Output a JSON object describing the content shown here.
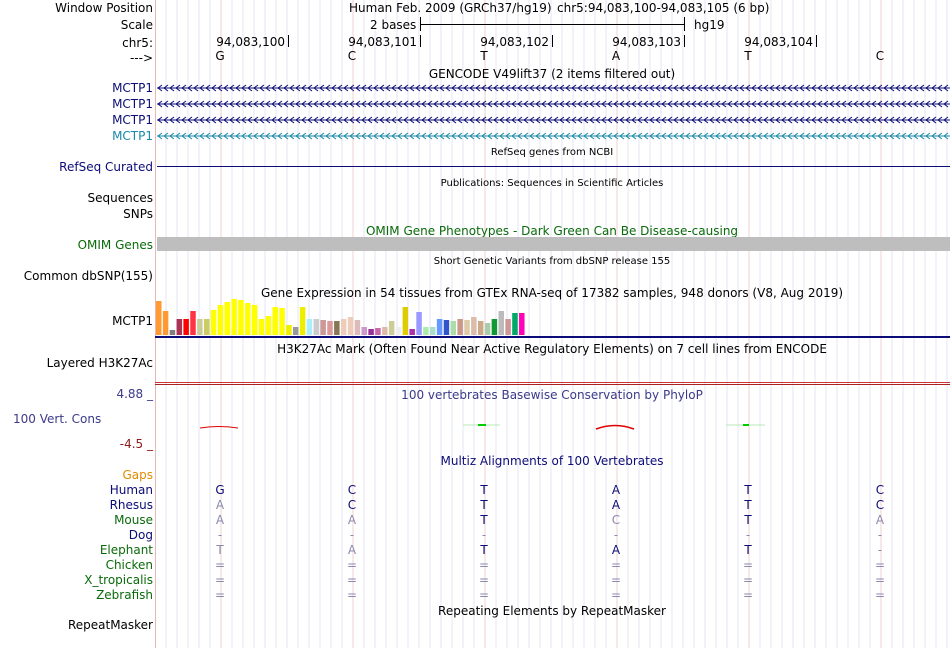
{
  "header": {
    "window_position_label": "Window Position",
    "scale_label": "Scale",
    "chrom_label": "chr5:",
    "strand_label": "--->",
    "assembly": "Human Feb. 2009 (GRCh37/hg19)",
    "position": "chr5:94,083,100-94,083,105 (6 bp)",
    "scale_text": "2 bases",
    "db": "hg19",
    "ticks": [
      "94,083,100",
      "94,083,101",
      "94,083,102",
      "94,083,103",
      "94,083,104"
    ],
    "bases": [
      "G",
      "C",
      "T",
      "A",
      "T",
      "C"
    ]
  },
  "tracks": {
    "gencode": {
      "title": "GENCODE V49lift37 (2 items filtered out)",
      "items": [
        "MCTP1",
        "MCTP1",
        "MCTP1",
        "MCTP1"
      ],
      "colors": [
        "#0c0c78",
        "#0c0c78",
        "#0c0c78",
        "#1a8aa8"
      ]
    },
    "refseq": {
      "label": "RefSeq Curated",
      "title": "RefSeq genes from NCBI",
      "color": "#0c0c78"
    },
    "publications": {
      "title": "Publications: Sequences in Scientific Articles",
      "labels": [
        "Sequences",
        "SNPs"
      ]
    },
    "omim": {
      "label": "OMIM Genes",
      "title": "OMIM Gene Phenotypes - Dark Green Can Be Disease-causing",
      "label_color": "#0a6a0a",
      "bar_color": "#bebebe"
    },
    "dbsnp": {
      "label": "Common dbSNP(155)",
      "title": "Short Genetic Variants from dbSNP release 155"
    },
    "gtex": {
      "label": "MCTP1",
      "title": "Gene Expression in 54 tissues from GTEx RNA-seq of 17382 samples, 948 donors (V8, Aug 2019)",
      "values": [
        34,
        24,
        5,
        16,
        16,
        24,
        16,
        16,
        25,
        30,
        33,
        36,
        35,
        32,
        30,
        16,
        19,
        28,
        27,
        10,
        8,
        28,
        16,
        16,
        15,
        14,
        14,
        16,
        18,
        15,
        8,
        6,
        7,
        8,
        14,
        8,
        28,
        6,
        23,
        8,
        8,
        16,
        15,
        14,
        16,
        15,
        18,
        14,
        12,
        16,
        24,
        16,
        22,
        22
      ],
      "colors": [
        "#ff9933",
        "#ff9933",
        "#808080",
        "#aa3355",
        "#ff0000",
        "#ff3344",
        "#cccc99",
        "#cccc66",
        "#ffff00",
        "#ffff00",
        "#ffff00",
        "#ffff00",
        "#ffff00",
        "#ffff00",
        "#ffff00",
        "#ffff00",
        "#ffff00",
        "#ffff00",
        "#ffff00",
        "#eeee00",
        "#999999",
        "#eeee00",
        "#aaeeff",
        "#cccccc",
        "#cc9999",
        "#dd9999",
        "#887755",
        "#eeccbb",
        "#eeccbb",
        "#ddbbbb",
        "#cc99cc",
        "#993399",
        "#cc66aa",
        "#ddbbaa",
        "#cccc99",
        "#eeeeee",
        "#ddcc00",
        "#aa33aa",
        "#9999ff",
        "#aaeeaa",
        "#aaddcc",
        "#6699ff",
        "#3355cc",
        "#aaddaa",
        "#cc9988",
        "#ddccaa",
        "#ddbbaa",
        "#ccaa88",
        "#aaccaa",
        "#119933",
        "#bbbbbb",
        "#cc9999",
        "#00aa66",
        "#ff00bb"
      ]
    },
    "h3k27ac": {
      "label": "Layered H3K27Ac",
      "title": "H3K27Ac Mark (Often Found Near Active Regulatory Elements) on 7 cell lines from ENCODE"
    },
    "phylop": {
      "label": "100 Vert. Cons",
      "title": "100 vertebrates Basewise Conservation by PhyloP",
      "max": "4.88 _",
      "min": "-4.5 _",
      "label_color": "#3a3a8a",
      "max_color": "#3a3a8a",
      "min_color": "#8b1a1a"
    },
    "multiz": {
      "title": "Multiz Alignments of 100 Vertebrates",
      "gaps_label": "Gaps",
      "gaps_color": "#e08a00",
      "species": [
        {
          "name": "Human",
          "color": "#0c0c78",
          "bases": [
            "G",
            "C",
            "T",
            "A",
            "T",
            "C"
          ]
        },
        {
          "name": "Rhesus",
          "color": "#0c0c78",
          "bases": [
            "A",
            "C",
            "T",
            "A",
            "T",
            "C"
          ]
        },
        {
          "name": "Mouse",
          "color": "#0a6a0a",
          "bases": [
            "A",
            "A",
            "T",
            "C",
            "T",
            "A"
          ]
        },
        {
          "name": "Dog",
          "color": "#0c0c78",
          "bases": [
            "-",
            "-",
            "-",
            "-",
            "-",
            "-"
          ]
        },
        {
          "name": "Elephant",
          "color": "#0a6a0a",
          "bases": [
            "T",
            "A",
            "T",
            "A",
            "T",
            "-"
          ]
        },
        {
          "name": "Chicken",
          "color": "#0a6a0a",
          "bases": [
            "=",
            "=",
            "=",
            "=",
            "=",
            "="
          ]
        },
        {
          "name": "X_tropicalis",
          "color": "#0a6a0a",
          "bases": [
            "=",
            "=",
            "=",
            "=",
            "=",
            "="
          ]
        },
        {
          "name": "Zebrafish",
          "color": "#0a6a0a",
          "bases": [
            "=",
            "=",
            "=",
            "=",
            "=",
            "="
          ]
        }
      ],
      "match_pattern": [
        [
          true,
          true,
          true,
          true,
          true,
          true
        ],
        [
          false,
          true,
          true,
          true,
          true,
          true
        ],
        [
          false,
          false,
          true,
          false,
          true,
          false
        ],
        [
          false,
          false,
          false,
          false,
          false,
          false
        ],
        [
          false,
          false,
          true,
          true,
          true,
          false
        ],
        [
          false,
          false,
          false,
          false,
          false,
          false
        ],
        [
          false,
          false,
          false,
          false,
          false,
          false
        ],
        [
          false,
          false,
          false,
          false,
          false,
          false
        ]
      ]
    },
    "repeatmasker": {
      "label": "RepeatMasker",
      "title": "Repeating Elements by RepeatMasker"
    }
  }
}
